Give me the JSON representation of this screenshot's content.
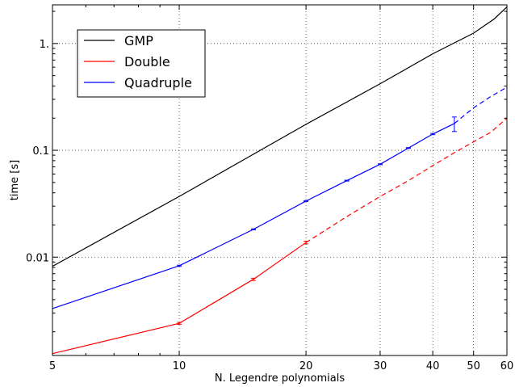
{
  "chart_data": {
    "type": "line",
    "xlabel": "N. Legendre polynomials",
    "ylabel": "time [s]",
    "xscale": "log",
    "yscale": "log",
    "xlim": [
      5,
      60
    ],
    "ylim": [
      0.0012,
      2.3
    ],
    "grid": true,
    "legend_position": "top-left",
    "x_ticks": [
      {
        "value": 5,
        "label": "5"
      },
      {
        "value": 10,
        "label": "10"
      },
      {
        "value": 20,
        "label": "20"
      },
      {
        "value": 30,
        "label": "30"
      },
      {
        "value": 40,
        "label": "40"
      },
      {
        "value": 50,
        "label": "50"
      },
      {
        "value": 60,
        "label": "60"
      }
    ],
    "y_ticks": [
      {
        "value": 0.01,
        "label": "0.01"
      },
      {
        "value": 0.1,
        "label": "0.1"
      },
      {
        "value": 1,
        "label": "1."
      }
    ],
    "series": [
      {
        "name": "GMP",
        "color": "#000000",
        "solid": [
          [
            5,
            0.0082
          ],
          [
            10,
            0.037
          ],
          [
            20,
            0.175
          ],
          [
            30,
            0.42
          ],
          [
            40,
            0.8
          ],
          [
            50,
            1.25
          ],
          [
            56,
            1.7
          ],
          [
            60,
            2.2
          ]
        ],
        "dashed": [],
        "errorbars": []
      },
      {
        "name": "Double",
        "color": "#ff0000",
        "solid": [
          [
            5,
            0.00125
          ],
          [
            10,
            0.0024
          ],
          [
            15,
            0.0062
          ],
          [
            20,
            0.0137
          ]
        ],
        "dashed": [
          [
            20,
            0.0137
          ],
          [
            25,
            0.024
          ],
          [
            30,
            0.037
          ],
          [
            35,
            0.052
          ],
          [
            40,
            0.072
          ],
          [
            45,
            0.095
          ],
          [
            50,
            0.12
          ],
          [
            55,
            0.148
          ],
          [
            60,
            0.2
          ]
        ],
        "errorbars": [
          {
            "x": 10,
            "y": 0.0024,
            "lo": 0.00235,
            "hi": 0.00245
          },
          {
            "x": 15,
            "y": 0.0062,
            "lo": 0.00605,
            "hi": 0.00635
          },
          {
            "x": 20,
            "y": 0.0137,
            "lo": 0.0133,
            "hi": 0.0141
          }
        ]
      },
      {
        "name": "Quadruple",
        "color": "#0000ff",
        "solid": [
          [
            5,
            0.0033
          ],
          [
            10,
            0.0083
          ],
          [
            15,
            0.0182
          ],
          [
            20,
            0.0335
          ],
          [
            25,
            0.052
          ],
          [
            30,
            0.074
          ],
          [
            35,
            0.105
          ],
          [
            40,
            0.142
          ],
          [
            45,
            0.178
          ]
        ],
        "dashed": [
          [
            45,
            0.178
          ],
          [
            50,
            0.25
          ],
          [
            55,
            0.32
          ],
          [
            60,
            0.39
          ]
        ],
        "errorbars": [
          {
            "x": 10,
            "y": 0.0083,
            "lo": 0.0082,
            "hi": 0.0084
          },
          {
            "x": 15,
            "y": 0.0182,
            "lo": 0.018,
            "hi": 0.0184
          },
          {
            "x": 20,
            "y": 0.0335,
            "lo": 0.0332,
            "hi": 0.0338
          },
          {
            "x": 25,
            "y": 0.052,
            "lo": 0.0515,
            "hi": 0.0525
          },
          {
            "x": 30,
            "y": 0.074,
            "lo": 0.0733,
            "hi": 0.0747
          },
          {
            "x": 35,
            "y": 0.105,
            "lo": 0.104,
            "hi": 0.106
          },
          {
            "x": 40,
            "y": 0.142,
            "lo": 0.14,
            "hi": 0.144
          },
          {
            "x": 45,
            "y": 0.178,
            "lo": 0.15,
            "hi": 0.205
          }
        ]
      }
    ]
  }
}
